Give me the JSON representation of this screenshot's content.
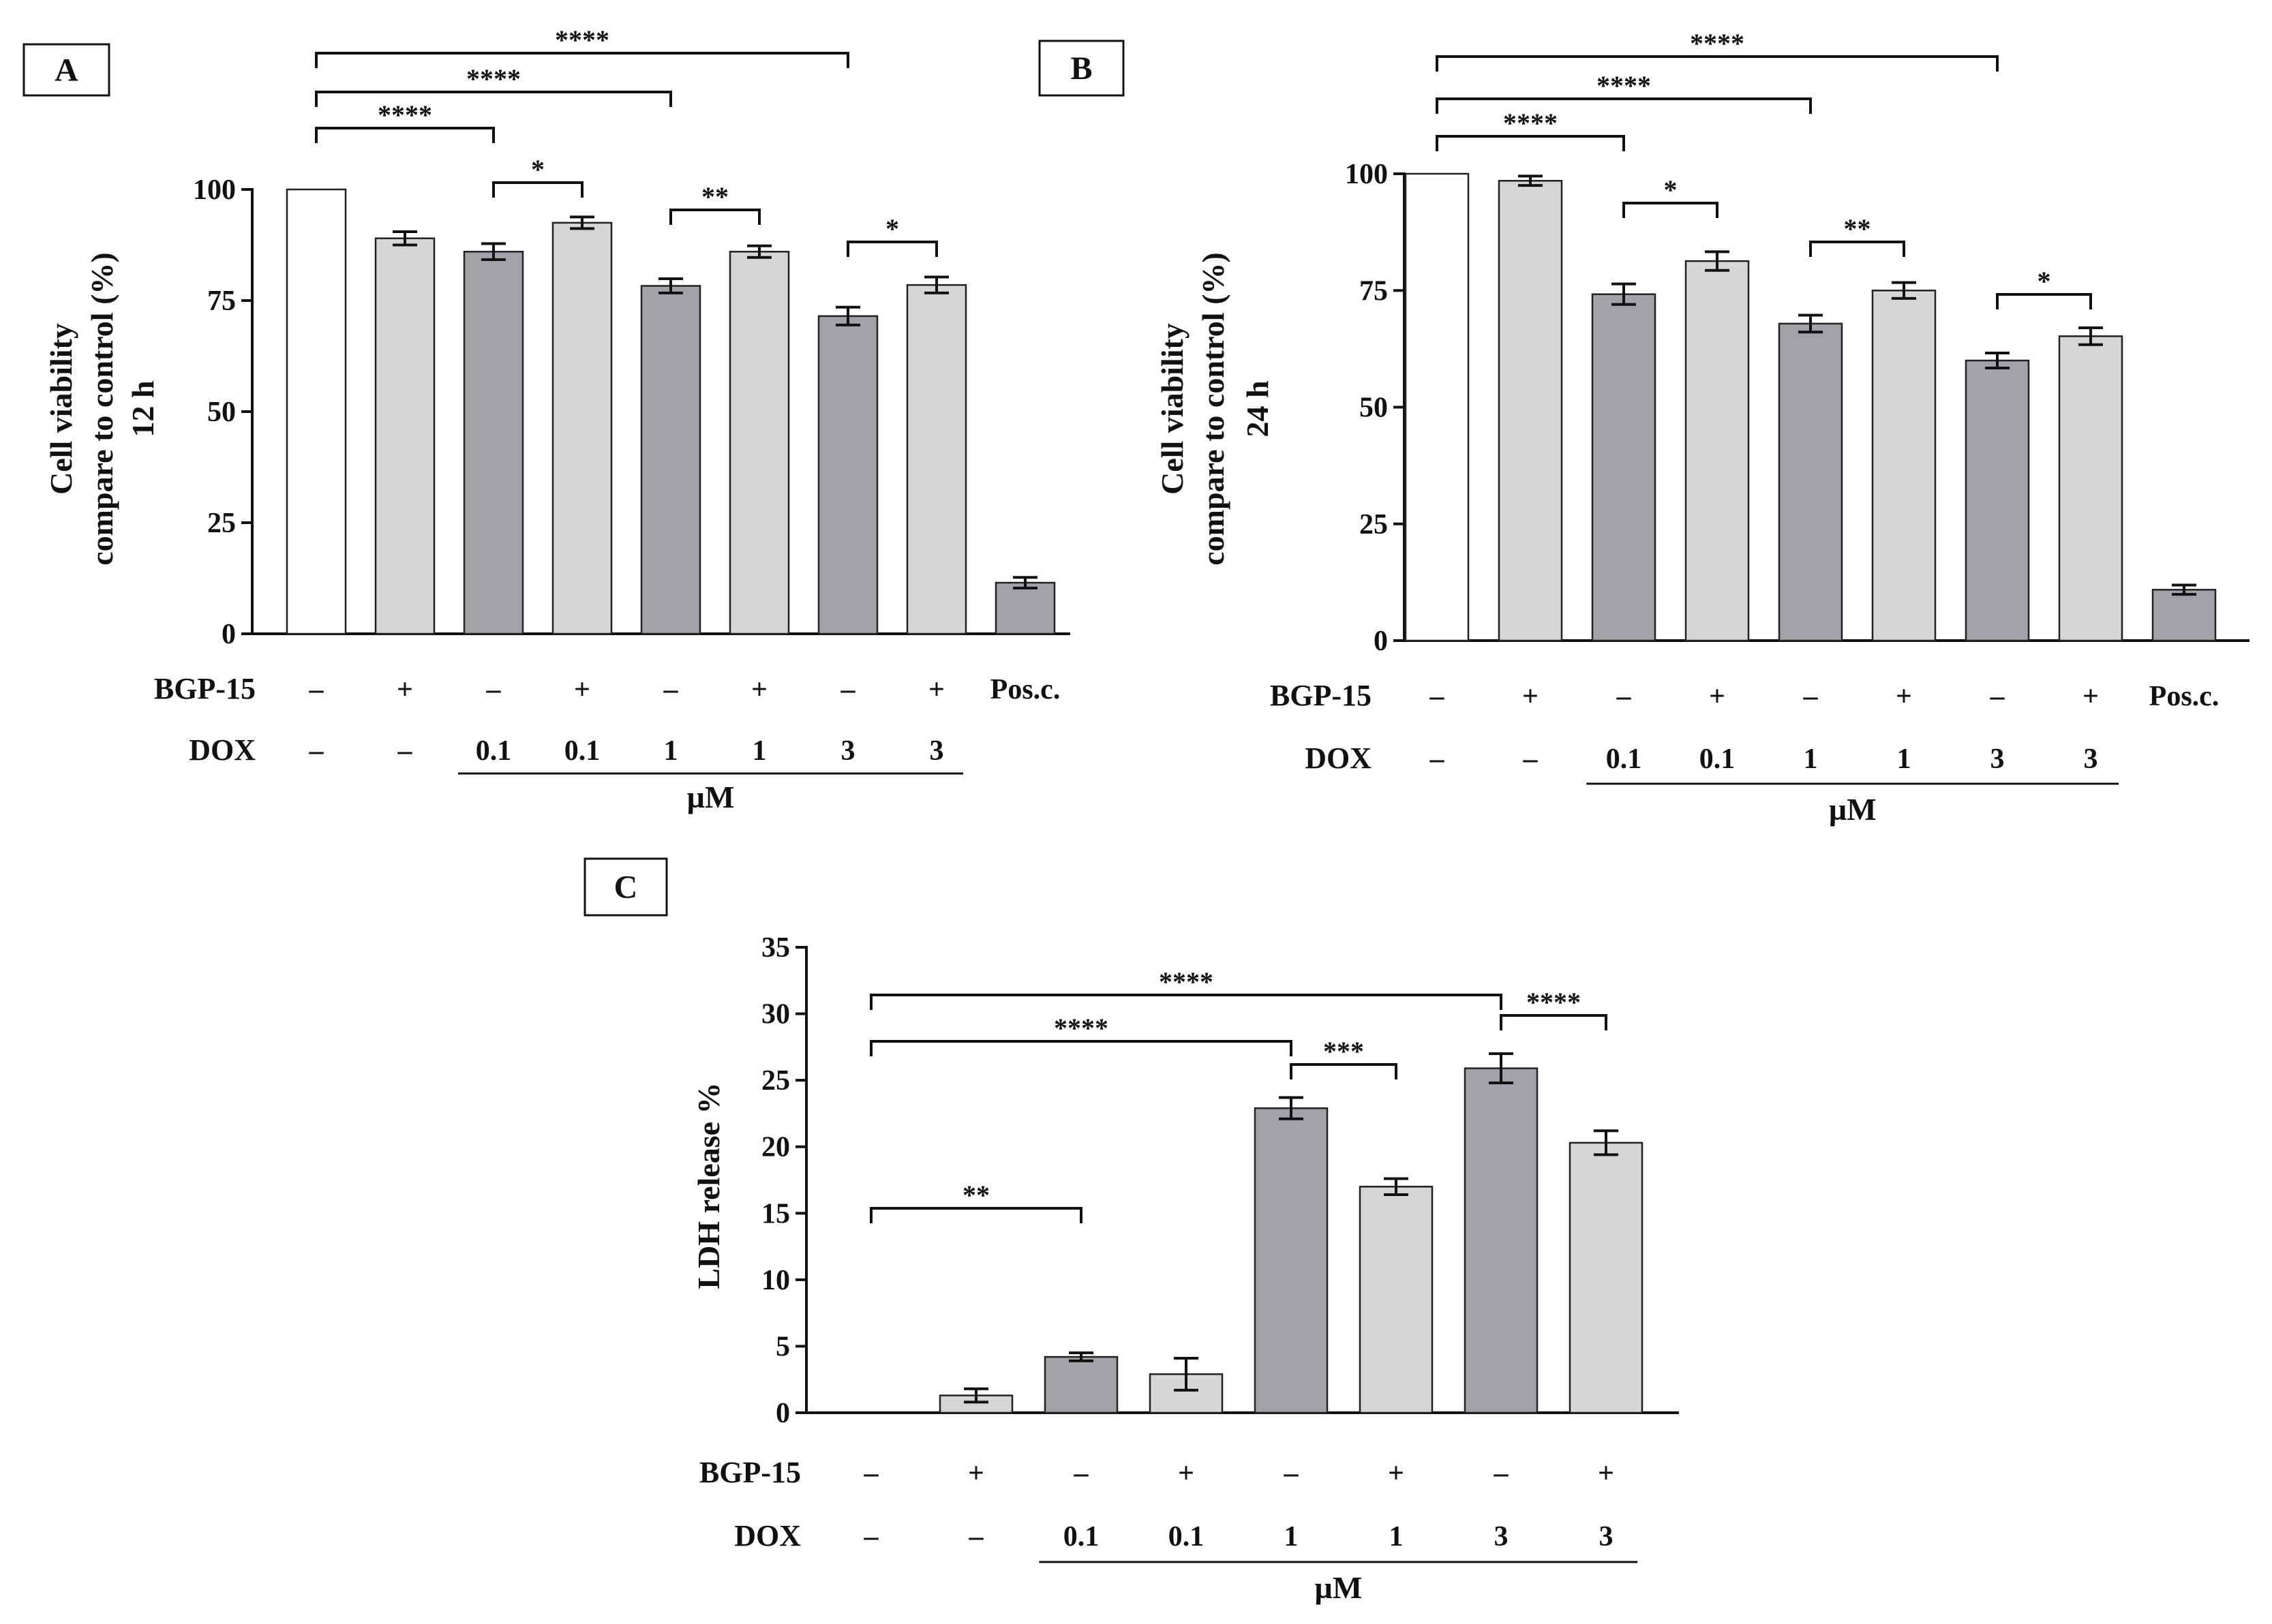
{
  "colors": {
    "control_fill": "#ffffff",
    "dox_fill": "#a3a2a8",
    "bgp_fill": "#d6d6d6",
    "posc_fill": "#a3a2a8",
    "stroke": "#222222"
  },
  "chart_data": [
    {
      "panel": "A",
      "type": "bar",
      "title": "",
      "xlabel": "",
      "ylabel": [
        "Cell viability",
        "compare to control (%)",
        "12 h"
      ],
      "ylim": [
        0,
        100
      ],
      "yticks": [
        0,
        25,
        50,
        75,
        100
      ],
      "ytick_labels": [
        "0",
        "25",
        "50",
        "75",
        "100"
      ],
      "values": [
        100,
        89,
        86,
        92.5,
        78.3,
        86,
        71.5,
        78.5,
        11.5
      ],
      "errors": [
        0,
        1.5,
        1.8,
        1.3,
        1.6,
        1.3,
        2.0,
        1.8,
        1.2
      ],
      "groups": [
        "control",
        "bgp",
        "dox",
        "bgp",
        "dox",
        "bgp",
        "dox",
        "bgp",
        "posc"
      ],
      "row_labels": {
        "bgp": "BGP-15",
        "dox": "DOX"
      },
      "bgp_row": [
        "–",
        "+",
        "–",
        "+",
        "–",
        "+",
        "–",
        "+",
        "Pos.c."
      ],
      "dox_row": [
        "–",
        "–",
        "0.1",
        "0.1",
        "1",
        "1",
        "3",
        "3",
        ""
      ],
      "unit": "µM",
      "unit_span": [
        2,
        7
      ],
      "significance": [
        {
          "from": 0,
          "to": 2,
          "label": "****"
        },
        {
          "from": 0,
          "to": 4,
          "label": "****"
        },
        {
          "from": 0,
          "to": 6,
          "label": "****"
        },
        {
          "from": 2,
          "to": 3,
          "label": "*"
        },
        {
          "from": 4,
          "to": 5,
          "label": "**"
        },
        {
          "from": 6,
          "to": 7,
          "label": "*"
        }
      ]
    },
    {
      "panel": "B",
      "type": "bar",
      "title": "",
      "xlabel": "",
      "ylabel": [
        "Cell viability",
        "compare to control (%)",
        "24 h"
      ],
      "ylim": [
        0,
        100
      ],
      "yticks": [
        0,
        25,
        50,
        75,
        100
      ],
      "ytick_labels": [
        "0",
        "25",
        "50",
        "75",
        "100"
      ],
      "values": [
        100,
        98.5,
        74.2,
        81.3,
        67.9,
        75,
        60,
        65.2,
        10.9
      ],
      "errors": [
        0,
        1.0,
        2.2,
        2.0,
        1.8,
        1.7,
        1.6,
        1.8,
        1.0
      ],
      "groups": [
        "control",
        "bgp",
        "dox",
        "bgp",
        "dox",
        "bgp",
        "dox",
        "bgp",
        "posc"
      ],
      "row_labels": {
        "bgp": "BGP-15",
        "dox": "DOX"
      },
      "bgp_row": [
        "–",
        "+",
        "–",
        "+",
        "–",
        "+",
        "–",
        "+",
        "Pos.c."
      ],
      "dox_row": [
        "–",
        "–",
        "0.1",
        "0.1",
        "1",
        "1",
        "3",
        "3",
        ""
      ],
      "unit": "µM",
      "unit_span": [
        2,
        7
      ],
      "significance": [
        {
          "from": 0,
          "to": 2,
          "label": "****"
        },
        {
          "from": 0,
          "to": 4,
          "label": "****"
        },
        {
          "from": 0,
          "to": 6,
          "label": "****"
        },
        {
          "from": 2,
          "to": 3,
          "label": "*"
        },
        {
          "from": 4,
          "to": 5,
          "label": "**"
        },
        {
          "from": 6,
          "to": 7,
          "label": "*"
        }
      ]
    },
    {
      "panel": "C",
      "type": "bar",
      "title": "",
      "xlabel": "",
      "ylabel": [
        "LDH release %"
      ],
      "ylim": [
        0,
        35
      ],
      "yticks": [
        0,
        5,
        10,
        15,
        20,
        25,
        30,
        35
      ],
      "ytick_labels": [
        "0",
        "5",
        "10",
        "15",
        "20",
        "25",
        "30",
        "35"
      ],
      "values": [
        0,
        1.3,
        4.2,
        2.9,
        22.9,
        17,
        25.9,
        20.3
      ],
      "errors": [
        0,
        0.5,
        0.3,
        1.2,
        0.8,
        0.6,
        1.1,
        0.9
      ],
      "groups": [
        "control",
        "bgp",
        "dox",
        "bgp",
        "dox",
        "bgp",
        "dox",
        "bgp"
      ],
      "row_labels": {
        "bgp": "BGP-15",
        "dox": "DOX"
      },
      "bgp_row": [
        "–",
        "+",
        "–",
        "+",
        "–",
        "+",
        "–",
        "+"
      ],
      "dox_row": [
        "–",
        "–",
        "0.1",
        "0.1",
        "1",
        "1",
        "3",
        "3"
      ],
      "unit": "µM",
      "unit_span": [
        2,
        7
      ],
      "significance": [
        {
          "from": 0,
          "to": 2,
          "label": "**"
        },
        {
          "from": 0,
          "to": 4,
          "label": "****"
        },
        {
          "from": 0,
          "to": 6,
          "label": "****"
        },
        {
          "from": 4,
          "to": 5,
          "label": "***"
        },
        {
          "from": 6,
          "to": 7,
          "label": "****"
        }
      ]
    }
  ]
}
